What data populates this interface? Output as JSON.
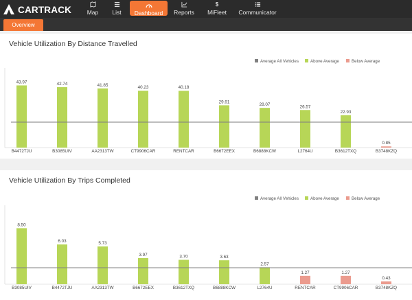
{
  "app": {
    "brand": "CARTRACK"
  },
  "nav": [
    {
      "label": "Map",
      "icon": "map-icon",
      "active": false
    },
    {
      "label": "List",
      "icon": "list-icon",
      "active": false
    },
    {
      "label": "Dashboard",
      "icon": "dashboard-icon",
      "active": true
    },
    {
      "label": "Reports",
      "icon": "reports-icon",
      "active": false
    },
    {
      "label": "MiFleet",
      "icon": "dollar-icon",
      "active": false
    },
    {
      "label": "Communicator",
      "icon": "communicator-icon",
      "active": false
    }
  ],
  "subnav": {
    "overview_label": "Overview"
  },
  "colors": {
    "above": "#b7d657",
    "below": "#eb9b8e",
    "average": "#808080",
    "accent": "#f47735",
    "dark": "#2b2b2b"
  },
  "legend": {
    "average": "Average All Vehicles",
    "above": "Above Average",
    "below": "Below Average"
  },
  "chart_data": [
    {
      "type": "bar",
      "title": "Vehicle Utilization By Distance Travelled",
      "categories": [
        "B4472TJU",
        "B3085UIV",
        "AA2313TW",
        "CT9906CAR",
        "RENTCAR",
        "B6672EEX",
        "B6888KCW",
        "L2764U",
        "B3612TXQ",
        "B3748KZQ"
      ],
      "values": [
        43.97,
        42.74,
        41.85,
        40.23,
        40.18,
        29.91,
        28.07,
        26.57,
        22.93,
        0.85
      ],
      "value_labels": [
        "43.97",
        "42.74",
        "41.85",
        "40.23",
        "40.18",
        "29.91",
        "28.07",
        "26.57",
        "22.93",
        "0.85"
      ],
      "status": [
        "above",
        "above",
        "above",
        "above",
        "above",
        "above",
        "above",
        "above",
        "above",
        "below"
      ],
      "average": 18.0,
      "ylim": [
        0,
        50
      ],
      "legend_position": "top-right"
    },
    {
      "type": "bar",
      "title": "Vehicle Utilization By Trips Completed",
      "categories": [
        "B3085UIV",
        "B4472TJU",
        "AA2313TW",
        "B6672EEX",
        "B3612TXQ",
        "B6888KCW",
        "L2764U",
        "RENTCAR",
        "CT9906CAR",
        "B3748KZQ"
      ],
      "values": [
        8.5,
        6.03,
        5.73,
        3.97,
        3.7,
        3.63,
        2.57,
        1.27,
        1.27,
        0.43
      ],
      "value_labels": [
        "8.50",
        "6.03",
        "5.73",
        "3.97",
        "3.70",
        "3.63",
        "2.57",
        "1.27",
        "1.27",
        "0.43"
      ],
      "status": [
        "above",
        "above",
        "above",
        "above",
        "above",
        "above",
        "above",
        "below",
        "below",
        "below"
      ],
      "average": 2.5,
      "ylim": [
        0,
        10
      ],
      "legend_position": "top-right"
    }
  ]
}
